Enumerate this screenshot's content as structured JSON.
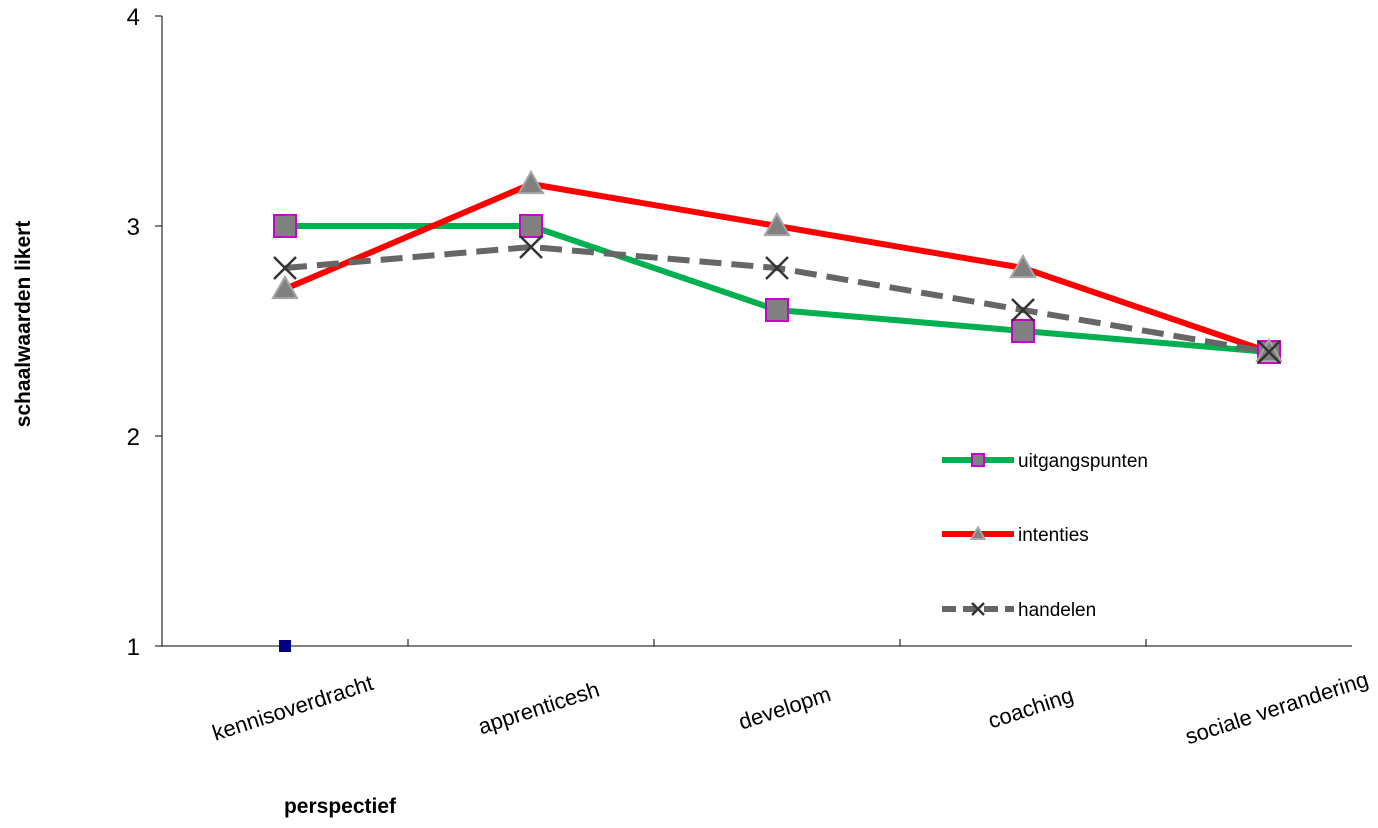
{
  "chart_data": {
    "type": "line",
    "categories": [
      "kennisoverdracht",
      "apprenticesh",
      "developm",
      "coaching",
      "sociale verandering"
    ],
    "series": [
      {
        "name": "uitgangspunten",
        "values": [
          3.0,
          3.0,
          2.6,
          2.5,
          2.4
        ],
        "color": "#00b050",
        "marker": "square",
        "marker_fill": "#808080",
        "marker_stroke": "#cc00cc",
        "dash": "solid"
      },
      {
        "name": "intenties",
        "values": [
          2.7,
          3.2,
          3.0,
          2.8,
          2.4
        ],
        "color": "#ff0000",
        "marker": "triangle",
        "marker_fill": "#808080",
        "marker_stroke": "#a6a6a6",
        "dash": "solid"
      },
      {
        "name": "handelen",
        "values": [
          2.8,
          2.9,
          2.8,
          2.6,
          2.4
        ],
        "color": "#666666",
        "marker": "x",
        "marker_fill": "#333333",
        "marker_stroke": "#333333",
        "dash": "dashed"
      }
    ],
    "extra_point": {
      "category_index": 0,
      "value": 1,
      "color": "#000080",
      "marker": "square"
    },
    "xlabel": "perspectief",
    "ylabel": "schaalwaarden likert",
    "ylim": [
      1,
      4
    ],
    "yticks": [
      "1",
      "2",
      "3",
      "4"
    ],
    "grid": false,
    "legend_position": "right"
  }
}
